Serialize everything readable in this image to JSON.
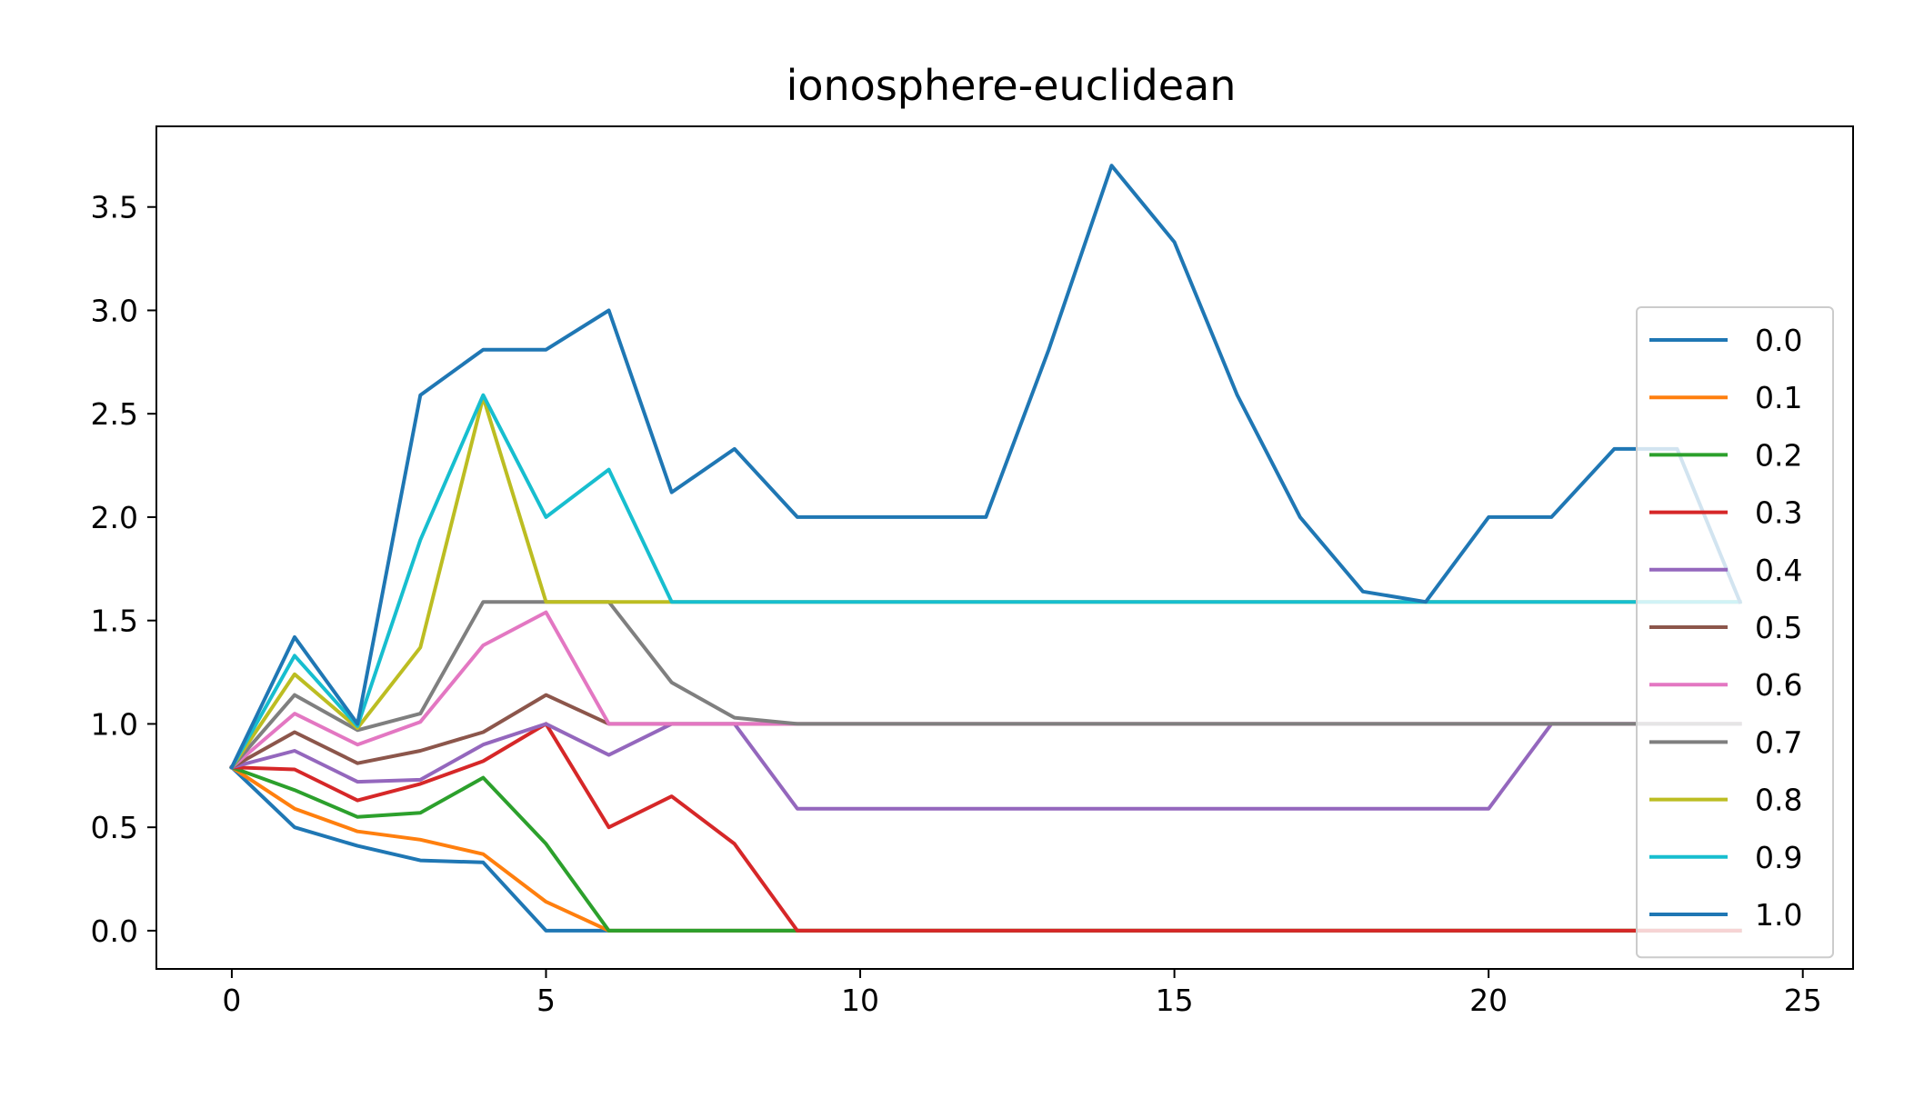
{
  "chart_data": {
    "type": "line",
    "title": "ionosphere-euclidean",
    "xlabel": "",
    "ylabel": "",
    "xlim": [
      -1.2,
      25.8
    ],
    "ylim": [
      -0.185,
      3.89
    ],
    "xticks": [
      0,
      5,
      10,
      15,
      20,
      25
    ],
    "xtick_labels": [
      "0",
      "5",
      "10",
      "15",
      "20",
      "25"
    ],
    "yticks": [
      0.0,
      0.5,
      1.0,
      1.5,
      2.0,
      2.5,
      3.0,
      3.5
    ],
    "ytick_labels": [
      "0.0",
      "0.5",
      "1.0",
      "1.5",
      "2.0",
      "2.5",
      "3.0",
      "3.5"
    ],
    "grid": false,
    "legend_position": "right",
    "x": [
      0,
      1,
      2,
      3,
      4,
      5,
      6,
      7,
      8,
      9,
      10,
      11,
      12,
      13,
      14,
      15,
      16,
      17,
      18,
      19,
      20,
      21,
      22,
      23,
      24
    ],
    "series": [
      {
        "name": "0.0",
        "color": "#1f77b4",
        "values": [
          0.79,
          0.5,
          0.41,
          0.34,
          0.33,
          0,
          0,
          0,
          0,
          0,
          0,
          0,
          0,
          0,
          0,
          0,
          0,
          0,
          0,
          0,
          0,
          0,
          0,
          0,
          0
        ]
      },
      {
        "name": "0.1",
        "color": "#ff7f0e",
        "values": [
          0.79,
          0.59,
          0.48,
          0.44,
          0.37,
          0.14,
          0,
          0,
          0,
          0,
          0,
          0,
          0,
          0,
          0,
          0,
          0,
          0,
          0,
          0,
          0,
          0,
          0,
          0,
          0
        ]
      },
      {
        "name": "0.2",
        "color": "#2ca02c",
        "values": [
          0.79,
          0.68,
          0.55,
          0.57,
          0.74,
          0.42,
          0,
          0,
          0,
          0,
          0,
          0,
          0,
          0,
          0,
          0,
          0,
          0,
          0,
          0,
          0,
          0,
          0,
          0,
          0
        ]
      },
      {
        "name": "0.3",
        "color": "#d62728",
        "values": [
          0.79,
          0.78,
          0.63,
          0.71,
          0.82,
          1.0,
          0.5,
          0.65,
          0.42,
          0,
          0,
          0,
          0,
          0,
          0,
          0,
          0,
          0,
          0,
          0,
          0,
          0,
          0,
          0,
          0
        ]
      },
      {
        "name": "0.4",
        "color": "#9467bd",
        "values": [
          0.79,
          0.87,
          0.72,
          0.73,
          0.9,
          1.0,
          0.85,
          1.0,
          1.0,
          0.59,
          0.59,
          0.59,
          0.59,
          0.59,
          0.59,
          0.59,
          0.59,
          0.59,
          0.59,
          0.59,
          0.59,
          1.0,
          1.0,
          1.0,
          1.0
        ]
      },
      {
        "name": "0.5",
        "color": "#8c564b",
        "values": [
          0.79,
          0.96,
          0.81,
          0.87,
          0.96,
          1.14,
          1.0,
          1.0,
          1.0,
          1.0,
          1.0,
          1.0,
          1.0,
          1.0,
          1.0,
          1.0,
          1.0,
          1.0,
          1.0,
          1.0,
          1.0,
          1.0,
          1.0,
          1.0,
          1.0
        ]
      },
      {
        "name": "0.6",
        "color": "#e377c2",
        "values": [
          0.79,
          1.05,
          0.9,
          1.01,
          1.38,
          1.54,
          1.0,
          1.0,
          1.0,
          1.0,
          1.0,
          1.0,
          1.0,
          1.0,
          1.0,
          1.0,
          1.0,
          1.0,
          1.0,
          1.0,
          1.0,
          1.0,
          1.0,
          1.0,
          1.0
        ]
      },
      {
        "name": "0.7",
        "color": "#7f7f7f",
        "values": [
          0.79,
          1.14,
          0.97,
          1.05,
          1.59,
          1.59,
          1.59,
          1.2,
          1.03,
          1.0,
          1.0,
          1.0,
          1.0,
          1.0,
          1.0,
          1.0,
          1.0,
          1.0,
          1.0,
          1.0,
          1.0,
          1.0,
          1.0,
          1.0,
          1.0
        ]
      },
      {
        "name": "0.8",
        "color": "#bcbd22",
        "values": [
          0.79,
          1.24,
          0.98,
          1.37,
          2.58,
          1.59,
          1.59,
          1.59,
          1.59,
          1.59,
          1.59,
          1.59,
          1.59,
          1.59,
          1.59,
          1.59,
          1.59,
          1.59,
          1.59,
          1.59,
          1.59,
          1.59,
          1.59,
          1.59,
          1.59
        ]
      },
      {
        "name": "0.9",
        "color": "#17becf",
        "values": [
          0.79,
          1.33,
          0.99,
          1.89,
          2.59,
          2.0,
          2.23,
          1.59,
          1.59,
          1.59,
          1.59,
          1.59,
          1.59,
          1.59,
          1.59,
          1.59,
          1.59,
          1.59,
          1.59,
          1.59,
          1.59,
          1.59,
          1.59,
          1.59,
          1.59
        ]
      },
      {
        "name": "1.0",
        "color": "#1f77b4",
        "values": [
          0.79,
          1.42,
          1.0,
          2.59,
          2.81,
          2.81,
          3.0,
          2.12,
          2.33,
          2.0,
          2.0,
          2.0,
          2.0,
          2.81,
          3.7,
          3.33,
          2.59,
          2.0,
          1.64,
          1.59,
          2.0,
          2.0,
          2.33,
          2.33,
          1.59
        ]
      }
    ]
  }
}
